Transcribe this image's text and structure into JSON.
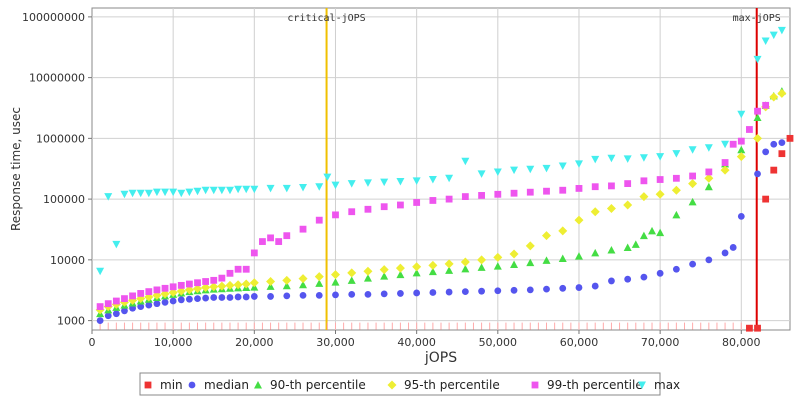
{
  "chart_data": {
    "type": "scatter",
    "xlabel": "jOPS",
    "ylabel": "Response time, usec",
    "xlim": [
      0,
      86000
    ],
    "ylim": [
      700,
      140000000
    ],
    "yscale": "log",
    "grid": true,
    "legend_position": "bottom",
    "x_ticks": [
      0,
      10000,
      20000,
      30000,
      40000,
      50000,
      60000,
      70000,
      80000
    ],
    "x_tick_labels": [
      "0",
      "10,000",
      "20,000",
      "30,000",
      "40,000",
      "50,000",
      "60,000",
      "70,000",
      "80,000"
    ],
    "y_ticks": [
      1000,
      10000,
      100000,
      1000000,
      10000000,
      100000000
    ],
    "y_tick_labels": [
      "1000",
      "10000",
      "100000",
      "1000000",
      "10000000",
      "100000000"
    ],
    "markers": [
      {
        "name": "critical-jOPS",
        "x": 28900,
        "color": "#f0c000"
      },
      {
        "name": "max-jOPS",
        "x": 81900,
        "color": "#dd0000"
      }
    ],
    "series": [
      {
        "name": "min",
        "color": "#ee3333",
        "shape": "square",
        "points": [
          [
            81000,
            750
          ],
          [
            82000,
            750
          ],
          [
            83000,
            100000
          ],
          [
            84000,
            300000
          ],
          [
            85000,
            560000
          ],
          [
            86000,
            1000000
          ]
        ]
      },
      {
        "name": "median",
        "color": "#5555ee",
        "shape": "circle",
        "points": [
          [
            1000,
            1000
          ],
          [
            2000,
            1200
          ],
          [
            3000,
            1300
          ],
          [
            4000,
            1450
          ],
          [
            5000,
            1600
          ],
          [
            6000,
            1700
          ],
          [
            7000,
            1800
          ],
          [
            8000,
            1900
          ],
          [
            9000,
            2000
          ],
          [
            10000,
            2100
          ],
          [
            11000,
            2200
          ],
          [
            12000,
            2250
          ],
          [
            13000,
            2300
          ],
          [
            14000,
            2350
          ],
          [
            15000,
            2400
          ],
          [
            16000,
            2400
          ],
          [
            17000,
            2400
          ],
          [
            18000,
            2450
          ],
          [
            19000,
            2450
          ],
          [
            20000,
            2500
          ],
          [
            22000,
            2500
          ],
          [
            24000,
            2550
          ],
          [
            26000,
            2600
          ],
          [
            28000,
            2600
          ],
          [
            30000,
            2650
          ],
          [
            32000,
            2700
          ],
          [
            34000,
            2700
          ],
          [
            36000,
            2750
          ],
          [
            38000,
            2800
          ],
          [
            40000,
            2850
          ],
          [
            42000,
            2900
          ],
          [
            44000,
            2950
          ],
          [
            46000,
            3000
          ],
          [
            48000,
            3050
          ],
          [
            50000,
            3100
          ],
          [
            52000,
            3150
          ],
          [
            54000,
            3200
          ],
          [
            56000,
            3300
          ],
          [
            58000,
            3400
          ],
          [
            60000,
            3500
          ],
          [
            62000,
            3700
          ],
          [
            64000,
            4500
          ],
          [
            66000,
            4800
          ],
          [
            68000,
            5200
          ],
          [
            70000,
            6000
          ],
          [
            72000,
            7000
          ],
          [
            74000,
            8500
          ],
          [
            76000,
            10000
          ],
          [
            78000,
            13000
          ],
          [
            79000,
            16000
          ],
          [
            80000,
            52000
          ],
          [
            82000,
            260000
          ],
          [
            83000,
            600000
          ],
          [
            84000,
            800000
          ],
          [
            85000,
            850000
          ]
        ]
      },
      {
        "name": "90-th percentile",
        "color": "#44dd44",
        "shape": "triangle-up",
        "points": [
          [
            1000,
            1300
          ],
          [
            2000,
            1500
          ],
          [
            3000,
            1650
          ],
          [
            4000,
            1800
          ],
          [
            5000,
            1950
          ],
          [
            6000,
            2100
          ],
          [
            7000,
            2250
          ],
          [
            8000,
            2400
          ],
          [
            9000,
            2550
          ],
          [
            10000,
            2700
          ],
          [
            11000,
            2850
          ],
          [
            12000,
            3000
          ],
          [
            13000,
            3100
          ],
          [
            14000,
            3200
          ],
          [
            15000,
            3300
          ],
          [
            16000,
            3350
          ],
          [
            17000,
            3400
          ],
          [
            18000,
            3450
          ],
          [
            19000,
            3500
          ],
          [
            20000,
            3550
          ],
          [
            22000,
            3650
          ],
          [
            24000,
            3750
          ],
          [
            26000,
            3900
          ],
          [
            28000,
            4100
          ],
          [
            30000,
            4300
          ],
          [
            32000,
            4600
          ],
          [
            34000,
            5000
          ],
          [
            36000,
            5400
          ],
          [
            38000,
            5700
          ],
          [
            40000,
            6100
          ],
          [
            42000,
            6400
          ],
          [
            44000,
            6700
          ],
          [
            46000,
            7100
          ],
          [
            48000,
            7500
          ],
          [
            50000,
            7900
          ],
          [
            52000,
            8400
          ],
          [
            54000,
            9000
          ],
          [
            56000,
            9800
          ],
          [
            58000,
            10500
          ],
          [
            60000,
            11500
          ],
          [
            62000,
            13000
          ],
          [
            64000,
            14500
          ],
          [
            66000,
            16000
          ],
          [
            67000,
            18000
          ],
          [
            68000,
            25000
          ],
          [
            69000,
            30000
          ],
          [
            70000,
            28000
          ],
          [
            72000,
            55000
          ],
          [
            74000,
            90000
          ],
          [
            76000,
            160000
          ],
          [
            78000,
            380000
          ],
          [
            80000,
            650000
          ],
          [
            82000,
            2200000
          ],
          [
            83000,
            3500000
          ],
          [
            84000,
            5000000
          ],
          [
            85000,
            6000000
          ]
        ]
      },
      {
        "name": "95-th percentile",
        "color": "#eeee33",
        "shape": "diamond",
        "points": [
          [
            1000,
            1500
          ],
          [
            2000,
            1700
          ],
          [
            3000,
            1850
          ],
          [
            4000,
            2000
          ],
          [
            5000,
            2150
          ],
          [
            6000,
            2300
          ],
          [
            7000,
            2450
          ],
          [
            8000,
            2600
          ],
          [
            9000,
            2750
          ],
          [
            10000,
            2900
          ],
          [
            11000,
            3050
          ],
          [
            12000,
            3200
          ],
          [
            13000,
            3350
          ],
          [
            14000,
            3500
          ],
          [
            15000,
            3600
          ],
          [
            16000,
            3700
          ],
          [
            17000,
            3800
          ],
          [
            18000,
            3900
          ],
          [
            19000,
            4000
          ],
          [
            20000,
            4200
          ],
          [
            22000,
            4400
          ],
          [
            24000,
            4600
          ],
          [
            26000,
            4900
          ],
          [
            28000,
            5300
          ],
          [
            30000,
            5700
          ],
          [
            32000,
            6100
          ],
          [
            34000,
            6500
          ],
          [
            36000,
            6900
          ],
          [
            38000,
            7300
          ],
          [
            40000,
            7700
          ],
          [
            42000,
            8100
          ],
          [
            44000,
            8600
          ],
          [
            46000,
            9200
          ],
          [
            48000,
            10000
          ],
          [
            50000,
            11000
          ],
          [
            52000,
            12500
          ],
          [
            54000,
            17000
          ],
          [
            56000,
            25000
          ],
          [
            58000,
            30000
          ],
          [
            60000,
            45000
          ],
          [
            62000,
            62000
          ],
          [
            64000,
            70000
          ],
          [
            66000,
            80000
          ],
          [
            68000,
            110000
          ],
          [
            70000,
            120000
          ],
          [
            72000,
            140000
          ],
          [
            74000,
            180000
          ],
          [
            76000,
            220000
          ],
          [
            78000,
            300000
          ],
          [
            80000,
            500000
          ],
          [
            82000,
            1000000
          ],
          [
            83000,
            3300000
          ],
          [
            84000,
            4800000
          ],
          [
            85000,
            5500000
          ]
        ]
      },
      {
        "name": "99-th percentile",
        "color": "#ee55ee",
        "shape": "square",
        "points": [
          [
            1000,
            1700
          ],
          [
            2000,
            1900
          ],
          [
            3000,
            2100
          ],
          [
            4000,
            2300
          ],
          [
            5000,
            2550
          ],
          [
            6000,
            2800
          ],
          [
            7000,
            3000
          ],
          [
            8000,
            3200
          ],
          [
            9000,
            3400
          ],
          [
            10000,
            3600
          ],
          [
            11000,
            3800
          ],
          [
            12000,
            4000
          ],
          [
            13000,
            4200
          ],
          [
            14000,
            4400
          ],
          [
            15000,
            4600
          ],
          [
            16000,
            5000
          ],
          [
            17000,
            6000
          ],
          [
            18000,
            7000
          ],
          [
            19000,
            7000
          ],
          [
            20000,
            13000
          ],
          [
            21000,
            20000
          ],
          [
            22000,
            23000
          ],
          [
            23000,
            20000
          ],
          [
            24000,
            25000
          ],
          [
            26000,
            32000
          ],
          [
            28000,
            45000
          ],
          [
            30000,
            55000
          ],
          [
            32000,
            62000
          ],
          [
            34000,
            68000
          ],
          [
            36000,
            75000
          ],
          [
            38000,
            80000
          ],
          [
            40000,
            88000
          ],
          [
            42000,
            95000
          ],
          [
            44000,
            100000
          ],
          [
            46000,
            110000
          ],
          [
            48000,
            115000
          ],
          [
            50000,
            120000
          ],
          [
            52000,
            125000
          ],
          [
            54000,
            130000
          ],
          [
            56000,
            135000
          ],
          [
            58000,
            140000
          ],
          [
            60000,
            150000
          ],
          [
            62000,
            160000
          ],
          [
            64000,
            165000
          ],
          [
            66000,
            180000
          ],
          [
            68000,
            200000
          ],
          [
            70000,
            210000
          ],
          [
            72000,
            220000
          ],
          [
            74000,
            240000
          ],
          [
            76000,
            280000
          ],
          [
            78000,
            400000
          ],
          [
            79000,
            800000
          ],
          [
            80000,
            900000
          ],
          [
            81000,
            1400000
          ],
          [
            82000,
            2800000
          ],
          [
            83000,
            3500000
          ]
        ]
      },
      {
        "name": "max",
        "color": "#44eeee",
        "shape": "triangle-down",
        "points": [
          [
            1000,
            6500
          ],
          [
            2000,
            110000
          ],
          [
            3000,
            18000
          ],
          [
            4000,
            120000
          ],
          [
            5000,
            125000
          ],
          [
            6000,
            125000
          ],
          [
            7000,
            125000
          ],
          [
            8000,
            130000
          ],
          [
            9000,
            130000
          ],
          [
            10000,
            130000
          ],
          [
            11000,
            125000
          ],
          [
            12000,
            130000
          ],
          [
            13000,
            135000
          ],
          [
            14000,
            140000
          ],
          [
            15000,
            140000
          ],
          [
            16000,
            140000
          ],
          [
            17000,
            140000
          ],
          [
            18000,
            145000
          ],
          [
            19000,
            145000
          ],
          [
            20000,
            145000
          ],
          [
            22000,
            150000
          ],
          [
            24000,
            150000
          ],
          [
            26000,
            155000
          ],
          [
            28000,
            160000
          ],
          [
            29000,
            230000
          ],
          [
            30000,
            170000
          ],
          [
            32000,
            180000
          ],
          [
            34000,
            185000
          ],
          [
            36000,
            190000
          ],
          [
            38000,
            195000
          ],
          [
            40000,
            200000
          ],
          [
            42000,
            210000
          ],
          [
            44000,
            220000
          ],
          [
            46000,
            420000
          ],
          [
            48000,
            260000
          ],
          [
            50000,
            280000
          ],
          [
            52000,
            300000
          ],
          [
            54000,
            310000
          ],
          [
            56000,
            320000
          ],
          [
            58000,
            350000
          ],
          [
            60000,
            380000
          ],
          [
            62000,
            450000
          ],
          [
            64000,
            470000
          ],
          [
            66000,
            460000
          ],
          [
            68000,
            480000
          ],
          [
            70000,
            500000
          ],
          [
            72000,
            560000
          ],
          [
            74000,
            650000
          ],
          [
            76000,
            700000
          ],
          [
            78000,
            800000
          ],
          [
            80000,
            2500000
          ],
          [
            82000,
            20000000
          ],
          [
            83000,
            40000000
          ],
          [
            84000,
            50000000
          ],
          [
            85000,
            60000000
          ]
        ]
      }
    ]
  }
}
